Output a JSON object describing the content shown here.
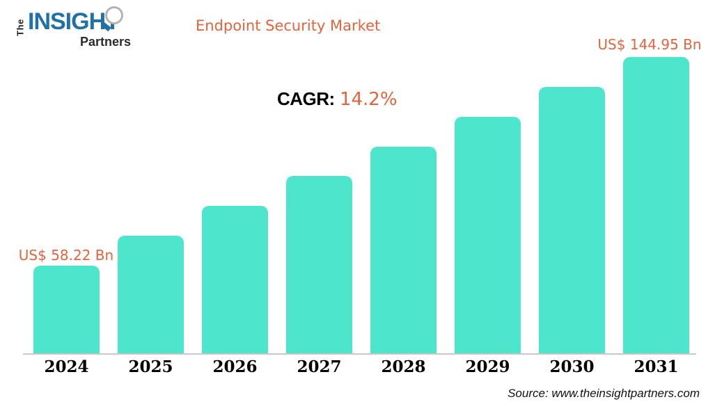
{
  "logo": {
    "the": "The",
    "insight": "INSIGHT",
    "partners": "Partners"
  },
  "title": "Endpoint Security Market",
  "cagr": {
    "label": "CAGR:",
    "value": "14.2%"
  },
  "source": "Source: www.theinsightpartners.com",
  "colors": {
    "bar": "#4DE5CB",
    "accent_orange": "#E4643C",
    "logo_blue": "#2171A9",
    "axis_line": "#C9C9C9"
  },
  "chart_data": {
    "type": "bar",
    "title": "Endpoint Security Market",
    "categories": [
      "2024",
      "2025",
      "2026",
      "2027",
      "2028",
      "2029",
      "2030",
      "2031"
    ],
    "values": [
      58.22,
      66.33,
      75.56,
      86.08,
      98.06,
      111.71,
      127.25,
      144.95
    ],
    "unit": "US$ Bn",
    "cagr_percent": 14.2,
    "data_labels": {
      "first": "US$ 58.22 Bn",
      "last": "US$ 144.95 Bn"
    },
    "xlabel": "",
    "ylabel": "",
    "grid": false,
    "legend": false,
    "bar_color": "#4DE5CB",
    "axis_visible": "x-baseline-only"
  }
}
